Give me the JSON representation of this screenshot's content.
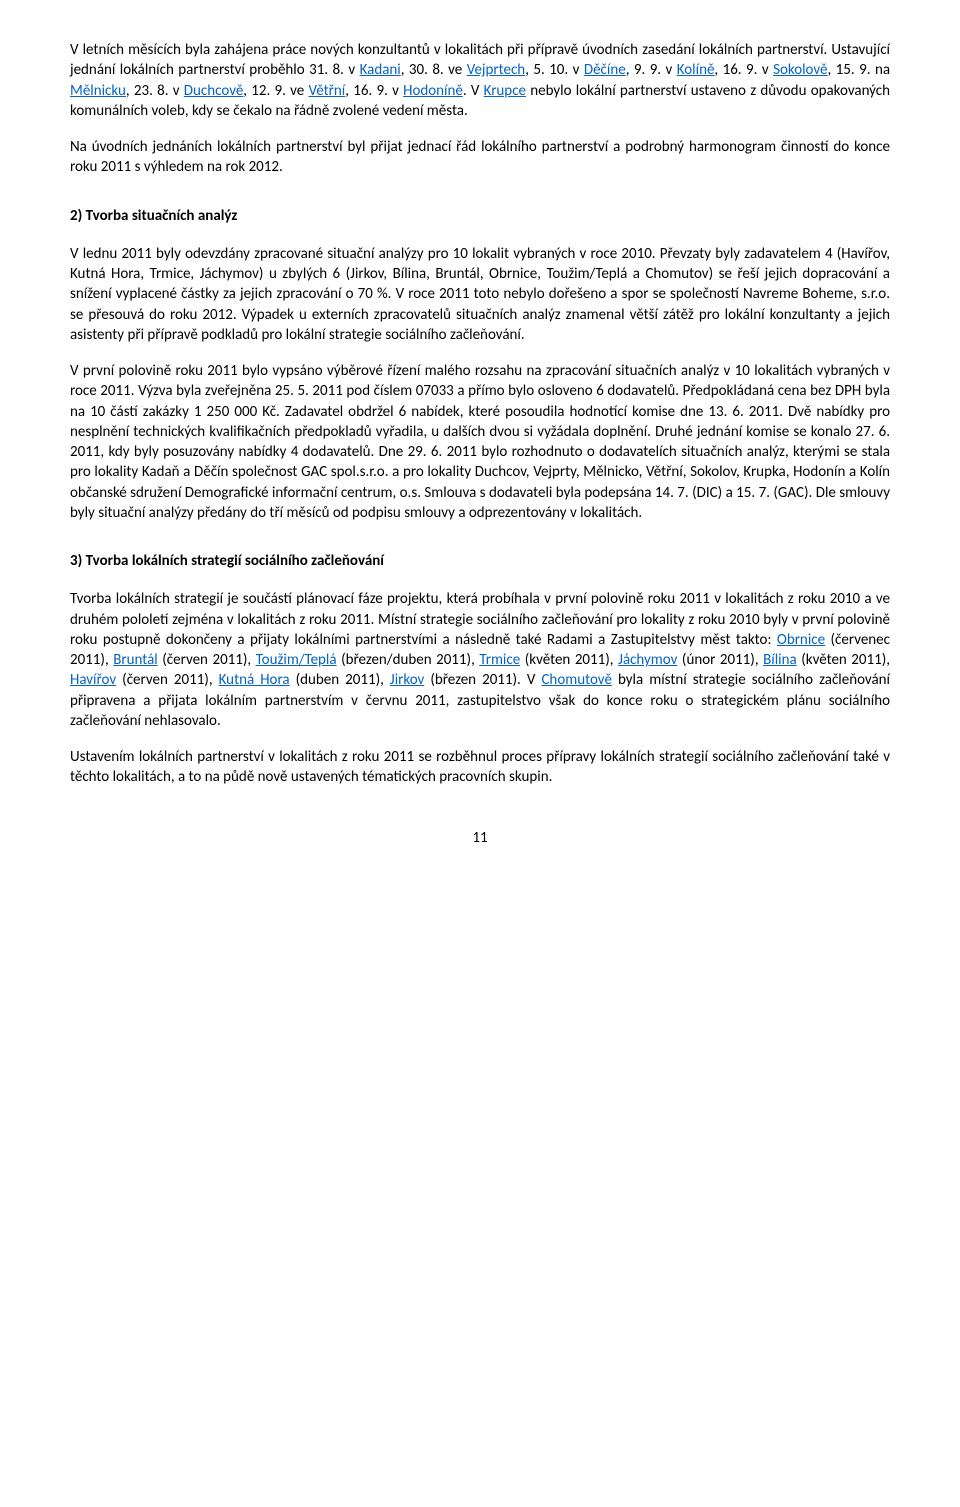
{
  "p1": {
    "t1": "V letních měsících byla zahájena práce nových konzultantů v lokalitách při přípravě úvodních zasedání lokálních partnerství. Ustavující jednání lokálních partnerství proběhlo 31. 8. v ",
    "l1": "Kadani",
    "t2": ", 30. 8. ve ",
    "l2": "Vejprtech",
    "t3": ", 5. 10. v ",
    "l3": "Děčíne",
    "t4": ", 9. 9. v ",
    "l4": "Kolíně",
    "t5": ", 16. 9. v ",
    "l5": "Sokolově",
    "t6": ", 15. 9. na ",
    "l6": "Mělnicku",
    "t7": ", 23. 8. v ",
    "l7": "Duchcově",
    "t8": ", 12. 9. ve ",
    "l8": "Větřní",
    "t9": ", 16. 9. v ",
    "l9": "Hodoníně",
    "t10": ". V ",
    "l10": "Krupce",
    "t11": " nebylo lokální partnerství ustaveno z důvodu opakovaných komunálních voleb, kdy se čekalo na řádně zvolené vedení města."
  },
  "p2": "Na úvodních jednáních lokálních partnerství byl přijat jednací řád lokálního partnerství a podrobný harmonogram činností do konce roku 2011 s výhledem na rok 2012.",
  "h2": "2) Tvorba situačních analýz",
  "p3": "V lednu 2011 byly odevzdány zpracované situační analýzy pro 10 lokalit vybraných v roce 2010. Převzaty byly zadavatelem 4 (Havířov, Kutná Hora, Trmice, Jáchymov) u zbylých 6 (Jirkov, Bílina, Bruntál, Obrnice, Toužim/Teplá a Chomutov)  se řeší jejich dopracování a snížení vyplacené částky za jejich zpracování o 70 %. V roce 2011 toto nebylo dořešeno a spor se společností Navreme Boheme, s.r.o. se přesouvá do roku 2012.  Výpadek u externích zpracovatelů situačních analýz znamenal větší zátěž pro lokální konzultanty a jejich asistenty při přípravě podkladů pro lokální strategie sociálního začleňování.",
  "p4": "V první polovině roku 2011 bylo vypsáno výběrové řízení malého rozsahu na zpracování situačních analýz v 10 lokalitách vybraných v roce 2011. Výzva byla zveřejněna 25. 5. 2011 pod číslem 07033 a přímo bylo osloveno 6 dodavatelů. Předpokládaná cena bez DPH byla na 10 částí zakázky 1 250 000 Kč.  Zadavatel obdržel 6 nabídek, které posoudila hodnotící komise dne 13. 6. 2011. Dvě nabídky pro nesplnění technických kvalifikačních předpokladů vyřadila, u dalších dvou si vyžádala doplnění. Druhé jednání komise se konalo 27. 6. 2011, kdy byly posuzovány nabídky 4 dodavatelů. Dne 29. 6. 2011 bylo rozhodnuto o dodavatelích situačních analýz, kterými se stala pro lokality Kadaň a Děčín společnost GAC spol.s.r.o. a pro lokality Duchcov, Vejprty, Mělnicko, Větřní, Sokolov, Krupka, Hodonín a Kolín občanské sdružení Demografické informační centrum, o.s. Smlouva s dodavateli byla podepsána 14. 7. (DIC) a 15. 7. (GAC). Dle smlouvy byly situační analýzy předány do tří měsíců od podpisu smlouvy a odprezentovány v lokalitách.",
  "h3": "3)  Tvorba lokálních strategií sociálního začleňování",
  "p5": {
    "t1": "Tvorba lokálních strategií je součástí plánovací fáze projektu, která probíhala v první polovině roku 2011 v lokalitách z roku 2010 a ve druhém pololetí zejména v lokalitách z roku 2011. Místní strategie sociálního začleňování pro lokality z roku 2010 byly v první polovině roku postupně dokončeny a přijaty lokálními partnerstvími a následně také Radami a Zastupitelstvy měst takto: ",
    "l1": "Obrnice",
    "t2": " (červenec 2011), ",
    "l2": "Bruntál",
    "t3": " (červen 2011), ",
    "l3": "Toužim/Teplá",
    "t4": " (březen/duben 2011), ",
    "l4": "Trmice",
    "t5": " (květen 2011), ",
    "l5": "Jáchymov",
    "t6": " (únor 2011), ",
    "l6": "Bílina",
    "t7": " (květen 2011), ",
    "l7": "Havířov",
    "t8": " (červen 2011), ",
    "l8": "Kutná Hora",
    "t9": " (duben 2011), ",
    "l9": "Jirkov",
    "t10": " (březen 2011). V ",
    "l10": "Chomutově",
    "t11": " byla místní strategie sociálního začleňování připravena a přijata lokálním partnerstvím v červnu 2011, zastupitelstvo však do konce roku o strategickém plánu sociálního začleňování nehlasovalo."
  },
  "p6": "Ustavením lokálních partnerství v lokalitách z roku 2011 se rozběhnul proces přípravy lokálních strategií sociálního začleňování také v těchto lokalitách, a to na půdě nově ustavených tématických pracovních skupin.",
  "pageNum": "11"
}
